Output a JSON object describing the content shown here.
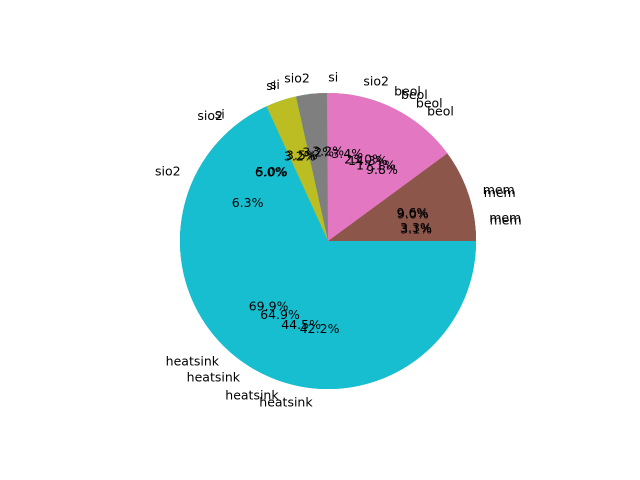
{
  "chart_data": [
    {
      "type": "pie",
      "categories": [
        "mem",
        "beol",
        "si",
        "sio2",
        "heatsink"
      ],
      "values": [
        3.1,
        23.0,
        5.0,
        6.3,
        42.2
      ],
      "percent_labels": [
        "3.1%",
        "23.0%",
        "5.0%",
        "6.3%",
        "42.2%"
      ]
    },
    {
      "type": "pie",
      "categories": [
        "mem",
        "beol",
        "si",
        "sio2",
        "heatsink"
      ],
      "values": [
        3.3,
        17.1,
        3.5,
        6.0,
        44.5
      ],
      "percent_labels": [
        "3.3%",
        "17.1%",
        "3.5%",
        "6.0%",
        "44.5%"
      ]
    },
    {
      "type": "pie",
      "categories": [
        "mem",
        "beol",
        "sio2",
        "si",
        "heatsink"
      ],
      "values": [
        9.0,
        9.8,
        3.4,
        3.2,
        69.9
      ],
      "percent_labels": [
        "9.0%",
        "9.8%",
        "3.4%",
        "3.2%",
        "69.9%"
      ]
    },
    {
      "type": "pie",
      "categories": [
        "mem",
        "beol",
        "sio2",
        "si",
        "heatsink"
      ],
      "values": [
        9.6,
        14.3,
        3.2,
        3.2,
        64.9
      ],
      "percent_labels": [
        "9.6%",
        "14.3%",
        "3.2%",
        "3.2%",
        "64.9%"
      ]
    }
  ],
  "colors": {
    "mem": "#8c564b",
    "beol": "#e377c2",
    "sio2": "#7f7f7f",
    "si": "#bcbd22",
    "heatsink": "#17becf"
  }
}
